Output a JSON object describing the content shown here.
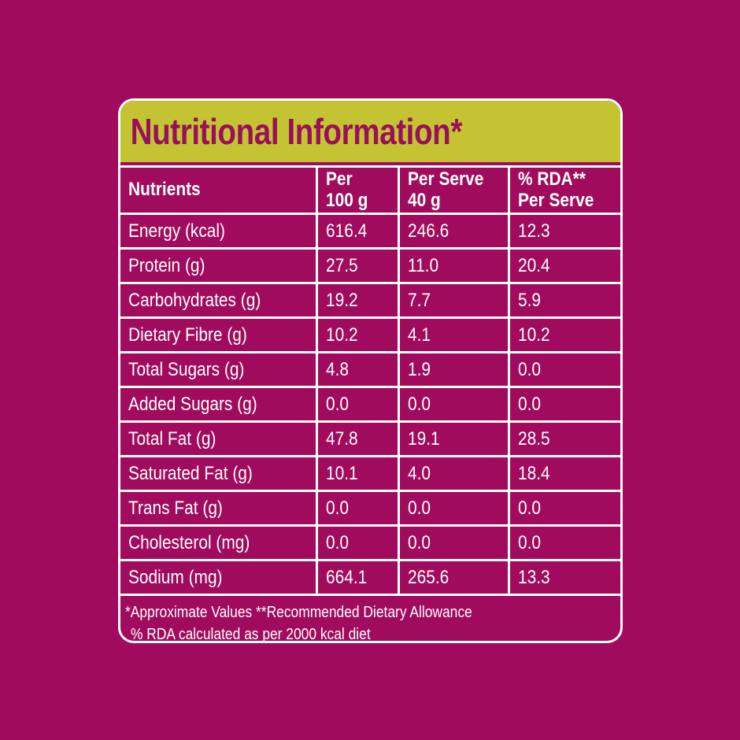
{
  "colors": {
    "background": "#A10B5D",
    "header_band": "#C4C433",
    "title_text": "#99105A",
    "table_text": "#FFFFFF",
    "border": "#FFFFFF"
  },
  "card": {
    "header": {
      "title": "Nutritional Information*"
    }
  },
  "table": {
    "columns": [
      {
        "line1": "Nutrients",
        "line2": ""
      },
      {
        "line1": "Per",
        "line2": "100 g"
      },
      {
        "line1": "Per Serve",
        "line2": "40 g"
      },
      {
        "line1": "% RDA**",
        "line2": "Per Serve"
      }
    ],
    "rows": [
      {
        "label": "Energy (kcal)",
        "per_100g": "616.4",
        "per_serve": "246.6",
        "rda_per_serve": "12.3"
      },
      {
        "label": "Protein (g)",
        "per_100g": "27.5",
        "per_serve": "11.0",
        "rda_per_serve": "20.4"
      },
      {
        "label": "Carbohydrates (g)",
        "per_100g": "19.2",
        "per_serve": "7.7",
        "rda_per_serve": "5.9"
      },
      {
        "label": "Dietary Fibre (g)",
        "per_100g": "10.2",
        "per_serve": "4.1",
        "rda_per_serve": "10.2"
      },
      {
        "label": "Total Sugars (g)",
        "per_100g": "4.8",
        "per_serve": "1.9",
        "rda_per_serve": "0.0"
      },
      {
        "label": "Added Sugars (g)",
        "per_100g": "0.0",
        "per_serve": "0.0",
        "rda_per_serve": "0.0"
      },
      {
        "label": "Total Fat (g)",
        "per_100g": "47.8",
        "per_serve": "19.1",
        "rda_per_serve": "28.5"
      },
      {
        "label": "Saturated Fat (g)",
        "per_100g": "10.1",
        "per_serve": "4.0",
        "rda_per_serve": "18.4"
      },
      {
        "label": "Trans Fat (g)",
        "per_100g": "0.0",
        "per_serve": "0.0",
        "rda_per_serve": "0.0"
      },
      {
        "label": "Cholesterol (mg)",
        "per_100g": "0.0",
        "per_serve": "0.0",
        "rda_per_serve": "0.0"
      },
      {
        "label": "Sodium (mg)",
        "per_100g": "664.1",
        "per_serve": "265.6",
        "rda_per_serve": "13.3"
      }
    ]
  },
  "footnotes": [
    "*Approximate Values  **Recommended Dietary Allowance",
    "% RDA calculated as per 2000 kcal diet"
  ]
}
